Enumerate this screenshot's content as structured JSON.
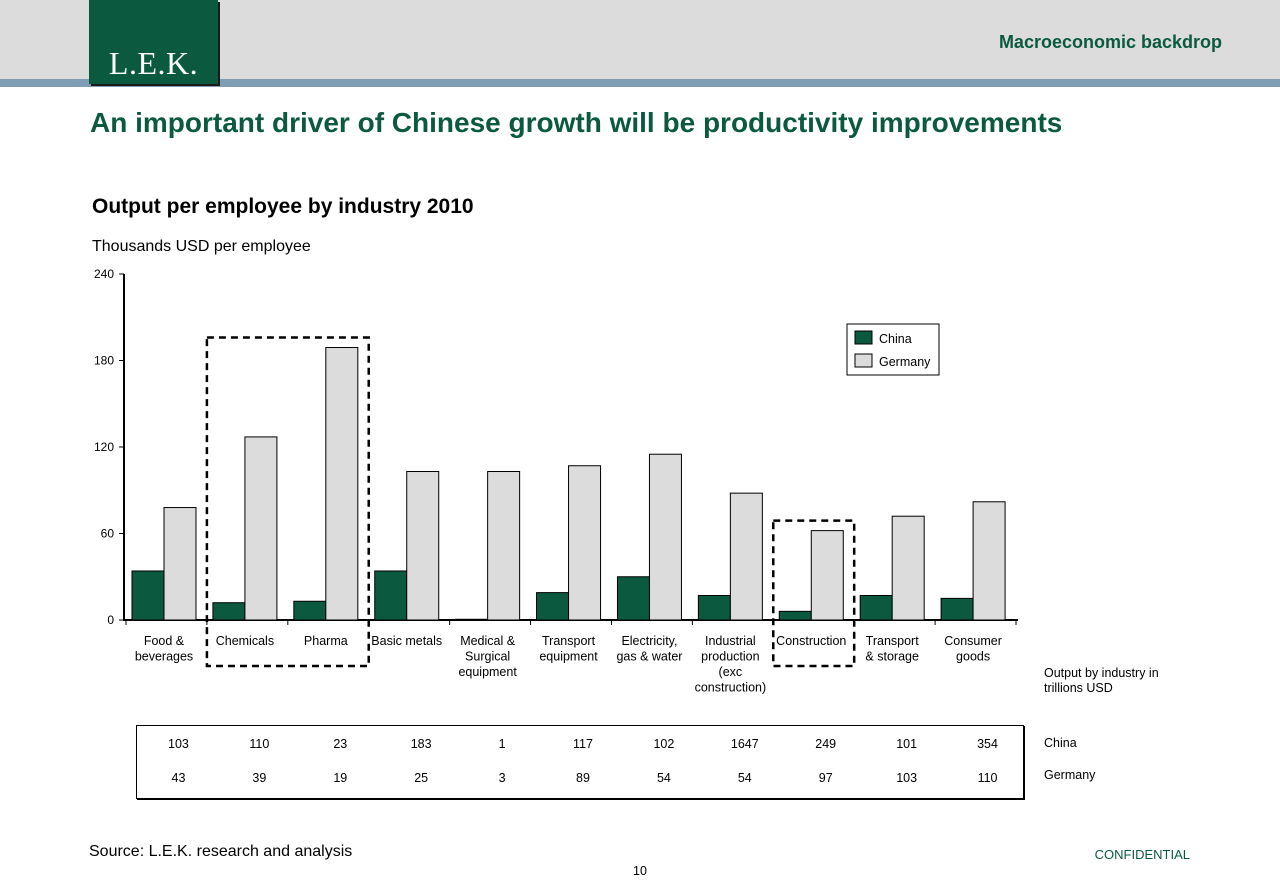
{
  "header": {
    "logo_text": "L.E.K.",
    "section_title": "Macroeconomic backdrop"
  },
  "headline": "An important driver of Chinese growth will be productivity improvements",
  "chart_data": {
    "type": "bar",
    "title": "Output per employee by industry 2010",
    "ylabel": "Thousands USD per employee",
    "ylim": [
      0,
      240
    ],
    "yticks": [
      0,
      60,
      120,
      180,
      240
    ],
    "categories": [
      [
        "Food &",
        "beverages"
      ],
      [
        "Chemicals"
      ],
      [
        "Pharma"
      ],
      [
        "Basic metals"
      ],
      [
        "Medical &",
        "Surgical",
        "equipment"
      ],
      [
        "Transport",
        "equipment"
      ],
      [
        "Electricity,",
        "gas & water"
      ],
      [
        "Industrial",
        "production",
        "(exc",
        "construction)"
      ],
      [
        "Construction"
      ],
      [
        "Transport",
        "& storage"
      ],
      [
        "Consumer",
        "goods"
      ]
    ],
    "series": [
      {
        "name": "China",
        "color": "#0b5a40",
        "values": [
          34,
          12,
          13,
          34,
          0.5,
          19,
          30,
          17,
          6,
          17,
          15
        ]
      },
      {
        "name": "Germany",
        "color": "#dcdcdc",
        "values": [
          78,
          127,
          189,
          103,
          103,
          107,
          115,
          88,
          62,
          72,
          82
        ]
      }
    ],
    "highlighted_groups": [
      [
        1,
        2
      ],
      [
        8
      ]
    ],
    "legend_position": "top-right",
    "grid": false
  },
  "output_table": {
    "note": "Output by industry in trillions USD",
    "rows": [
      {
        "label": "China",
        "values": [
          "103",
          "110",
          "23",
          "183",
          "1",
          "117",
          "102",
          "1647",
          "249",
          "101",
          "354"
        ]
      },
      {
        "label": "Germany",
        "values": [
          "43",
          "39",
          "19",
          "25",
          "3",
          "89",
          "54",
          "54",
          "97",
          "103",
          "110"
        ]
      }
    ]
  },
  "footer": {
    "source": "Source: L.E.K. research and analysis",
    "page_number": "10",
    "confidential": "CONFIDENTIAL"
  }
}
